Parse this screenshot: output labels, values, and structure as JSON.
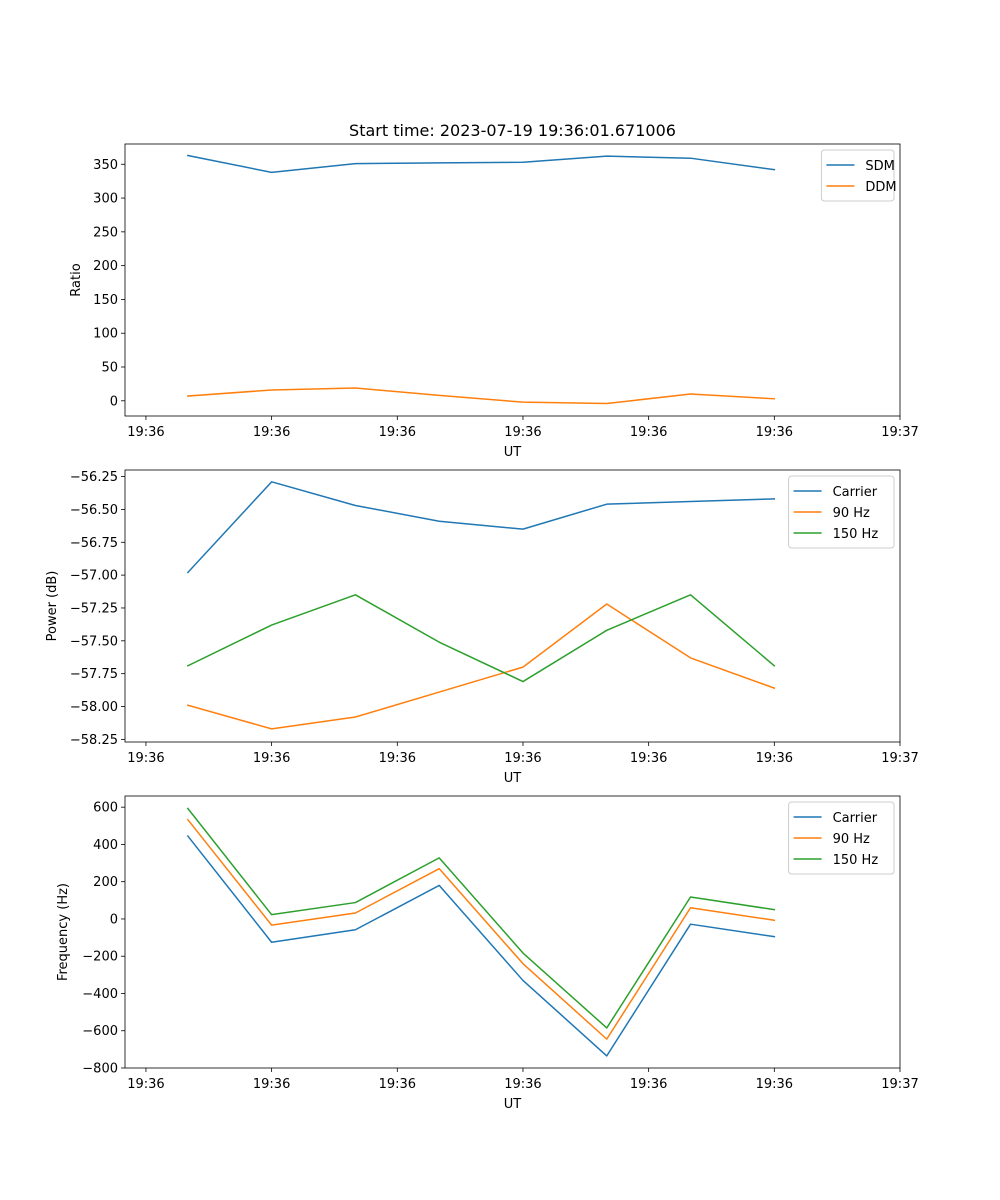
{
  "chart_data": [
    {
      "type": "line",
      "title": "Start time: 2023-07-19 19:36:01.671006",
      "xlabel": "UT",
      "ylabel": "Ratio",
      "x": [
        0,
        1,
        2,
        3,
        4,
        5,
        6,
        7
      ],
      "xlim": [
        -0.75,
        8.5
      ],
      "xticks": [
        -0.5,
        1.0,
        2.5,
        4.0,
        5.5,
        7.0,
        8.5
      ],
      "xticklabels": [
        "19:36",
        "19:36",
        "19:36",
        "19:36",
        "19:36",
        "19:36",
        "19:37"
      ],
      "ylim": [
        -22.5,
        380
      ],
      "yticks": [
        0,
        50,
        100,
        150,
        200,
        250,
        300,
        350
      ],
      "ytick_labels": [
        "0",
        "50",
        "100",
        "150",
        "200",
        "250",
        "300",
        "350"
      ],
      "legend_position": "top-right",
      "series": [
        {
          "name": "SDM",
          "color": "#1f77b4",
          "values": [
            363,
            338,
            351,
            352,
            353,
            362,
            359,
            342
          ]
        },
        {
          "name": "DDM",
          "color": "#ff7f0e",
          "values": [
            7,
            16,
            19,
            8,
            -2,
            -4,
            10,
            3
          ]
        }
      ]
    },
    {
      "type": "line",
      "title": "",
      "xlabel": "UT",
      "ylabel": "Power (dB)",
      "x": [
        0,
        1,
        2,
        3,
        4,
        5,
        6,
        7
      ],
      "xlim": [
        -0.75,
        8.5
      ],
      "xticks": [
        -0.5,
        1.0,
        2.5,
        4.0,
        5.5,
        7.0,
        8.5
      ],
      "xticklabels": [
        "19:36",
        "19:36",
        "19:36",
        "19:36",
        "19:36",
        "19:36",
        "19:37"
      ],
      "ylim": [
        -58.27,
        -56.2
      ],
      "yticks": [
        -58.25,
        -58.0,
        -57.75,
        -57.5,
        -57.25,
        -57.0,
        -56.75,
        -56.5,
        -56.25
      ],
      "ytick_labels": [
        "−58.25",
        "−58.00",
        "−57.75",
        "−57.50",
        "−57.25",
        "−57.00",
        "−56.75",
        "−56.50",
        "−56.25"
      ],
      "legend_position": "top-right",
      "series": [
        {
          "name": "Carrier",
          "color": "#1f77b4",
          "values": [
            -56.98,
            -56.29,
            -56.47,
            -56.59,
            -56.65,
            -56.46,
            -56.44,
            -56.42
          ]
        },
        {
          "name": "90 Hz",
          "color": "#ff7f0e",
          "values": [
            -57.99,
            -58.17,
            -58.08,
            -57.89,
            -57.7,
            -57.22,
            -57.63,
            -57.86
          ]
        },
        {
          "name": "150 Hz",
          "color": "#2ca02c",
          "values": [
            -57.69,
            -57.38,
            -57.15,
            -57.51,
            -57.81,
            -57.42,
            -57.15,
            -57.69
          ]
        }
      ]
    },
    {
      "type": "line",
      "title": "",
      "xlabel": "UT",
      "ylabel": "Frequency (Hz)",
      "x": [
        0,
        1,
        2,
        3,
        4,
        5,
        6,
        7
      ],
      "xlim": [
        -0.75,
        8.5
      ],
      "xticks": [
        -0.5,
        1.0,
        2.5,
        4.0,
        5.5,
        7.0,
        8.5
      ],
      "xticklabels": [
        "19:36",
        "19:36",
        "19:36",
        "19:36",
        "19:36",
        "19:36",
        "19:37"
      ],
      "ylim": [
        -800,
        660
      ],
      "yticks": [
        -800,
        -600,
        -400,
        -200,
        0,
        200,
        400,
        600
      ],
      "ytick_labels": [
        "−800",
        "−600",
        "−400",
        "−200",
        "0",
        "200",
        "400",
        "600"
      ],
      "legend_position": "top-right",
      "series": [
        {
          "name": "Carrier",
          "color": "#1f77b4",
          "values": [
            445,
            -125,
            -58,
            180,
            -330,
            -735,
            -28,
            -95
          ]
        },
        {
          "name": "90 Hz",
          "color": "#ff7f0e",
          "values": [
            533,
            -33,
            32,
            270,
            -240,
            -645,
            60,
            -7
          ]
        },
        {
          "name": "150 Hz",
          "color": "#2ca02c",
          "values": [
            593,
            23,
            88,
            328,
            -183,
            -585,
            118,
            50
          ]
        }
      ]
    }
  ]
}
